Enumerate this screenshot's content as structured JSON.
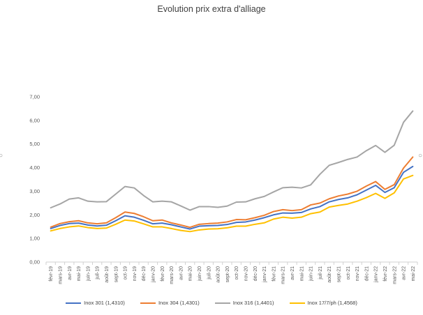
{
  "chart_data": {
    "type": "line",
    "title": "Evolution prix extra d'alliage",
    "xlabel": "",
    "ylabel": "",
    "ylim": [
      0,
      7
    ],
    "yticks": [
      "0,00",
      "1,00",
      "2,00",
      "3,00",
      "4,00",
      "5,00",
      "6,00",
      "7,00"
    ],
    "grid": false,
    "legend_position": "bottom",
    "categories": [
      "févr-19",
      "mars-19",
      "avr-19",
      "mai-19",
      "juin-19",
      "juil-19",
      "août-19",
      "sept-19",
      "oct-19",
      "nov-19",
      "déc-19",
      "janv-20",
      "févr-20",
      "mars-20",
      "avr-20",
      "mai-20",
      "juin-20",
      "juil-20",
      "août-20",
      "sept-20",
      "oct-20",
      "nov-20",
      "déc-20",
      "janv-21",
      "févr-21",
      "mars-21",
      "avr-21",
      "mai-21",
      "juin-21",
      "juil-21",
      "août-21",
      "sept-21",
      "oct-21",
      "nov-21",
      "déc-21",
      "janv-22",
      "févr-22",
      "mars-22",
      "avr-22",
      "mai-22"
    ],
    "series": [
      {
        "name": "Inox 301 (1,4310)",
        "color": "#4472C4",
        "values": [
          1.42,
          1.55,
          1.63,
          1.65,
          1.57,
          1.53,
          1.56,
          1.75,
          1.96,
          1.9,
          1.77,
          1.62,
          1.65,
          1.58,
          1.49,
          1.4,
          1.52,
          1.54,
          1.55,
          1.59,
          1.68,
          1.7,
          1.78,
          1.88,
          2.0,
          2.08,
          2.07,
          2.1,
          2.25,
          2.35,
          2.55,
          2.65,
          2.72,
          2.85,
          3.05,
          3.25,
          2.95,
          3.15,
          3.8,
          4.05
        ]
      },
      {
        "name": "Inox 304 (1,4301)",
        "color": "#ED7D31",
        "values": [
          1.48,
          1.63,
          1.71,
          1.75,
          1.66,
          1.62,
          1.66,
          1.88,
          2.12,
          2.06,
          1.92,
          1.75,
          1.78,
          1.66,
          1.57,
          1.47,
          1.6,
          1.63,
          1.65,
          1.7,
          1.8,
          1.79,
          1.88,
          1.98,
          2.14,
          2.22,
          2.18,
          2.22,
          2.42,
          2.5,
          2.68,
          2.8,
          2.88,
          3.0,
          3.22,
          3.41,
          3.08,
          3.28,
          3.98,
          4.45
        ]
      },
      {
        "name": "Inox 316 (1,4401)",
        "color": "#A5A5A5",
        "values": [
          2.3,
          2.46,
          2.67,
          2.72,
          2.58,
          2.55,
          2.56,
          2.88,
          3.2,
          3.14,
          2.82,
          2.55,
          2.58,
          2.55,
          2.38,
          2.2,
          2.35,
          2.35,
          2.32,
          2.37,
          2.54,
          2.55,
          2.68,
          2.78,
          2.97,
          3.15,
          3.17,
          3.14,
          3.27,
          3.72,
          4.1,
          4.22,
          4.35,
          4.45,
          4.72,
          4.94,
          4.65,
          4.95,
          5.92,
          6.4
        ]
      },
      {
        "name": "Inox 17/7/ph (1,4568)",
        "color": "#FFC000",
        "values": [
          1.32,
          1.42,
          1.49,
          1.53,
          1.46,
          1.42,
          1.44,
          1.6,
          1.78,
          1.74,
          1.62,
          1.49,
          1.49,
          1.42,
          1.34,
          1.29,
          1.36,
          1.4,
          1.41,
          1.45,
          1.52,
          1.52,
          1.6,
          1.66,
          1.82,
          1.9,
          1.86,
          1.9,
          2.05,
          2.12,
          2.33,
          2.4,
          2.46,
          2.58,
          2.73,
          2.91,
          2.7,
          2.93,
          3.52,
          3.67
        ]
      }
    ]
  }
}
